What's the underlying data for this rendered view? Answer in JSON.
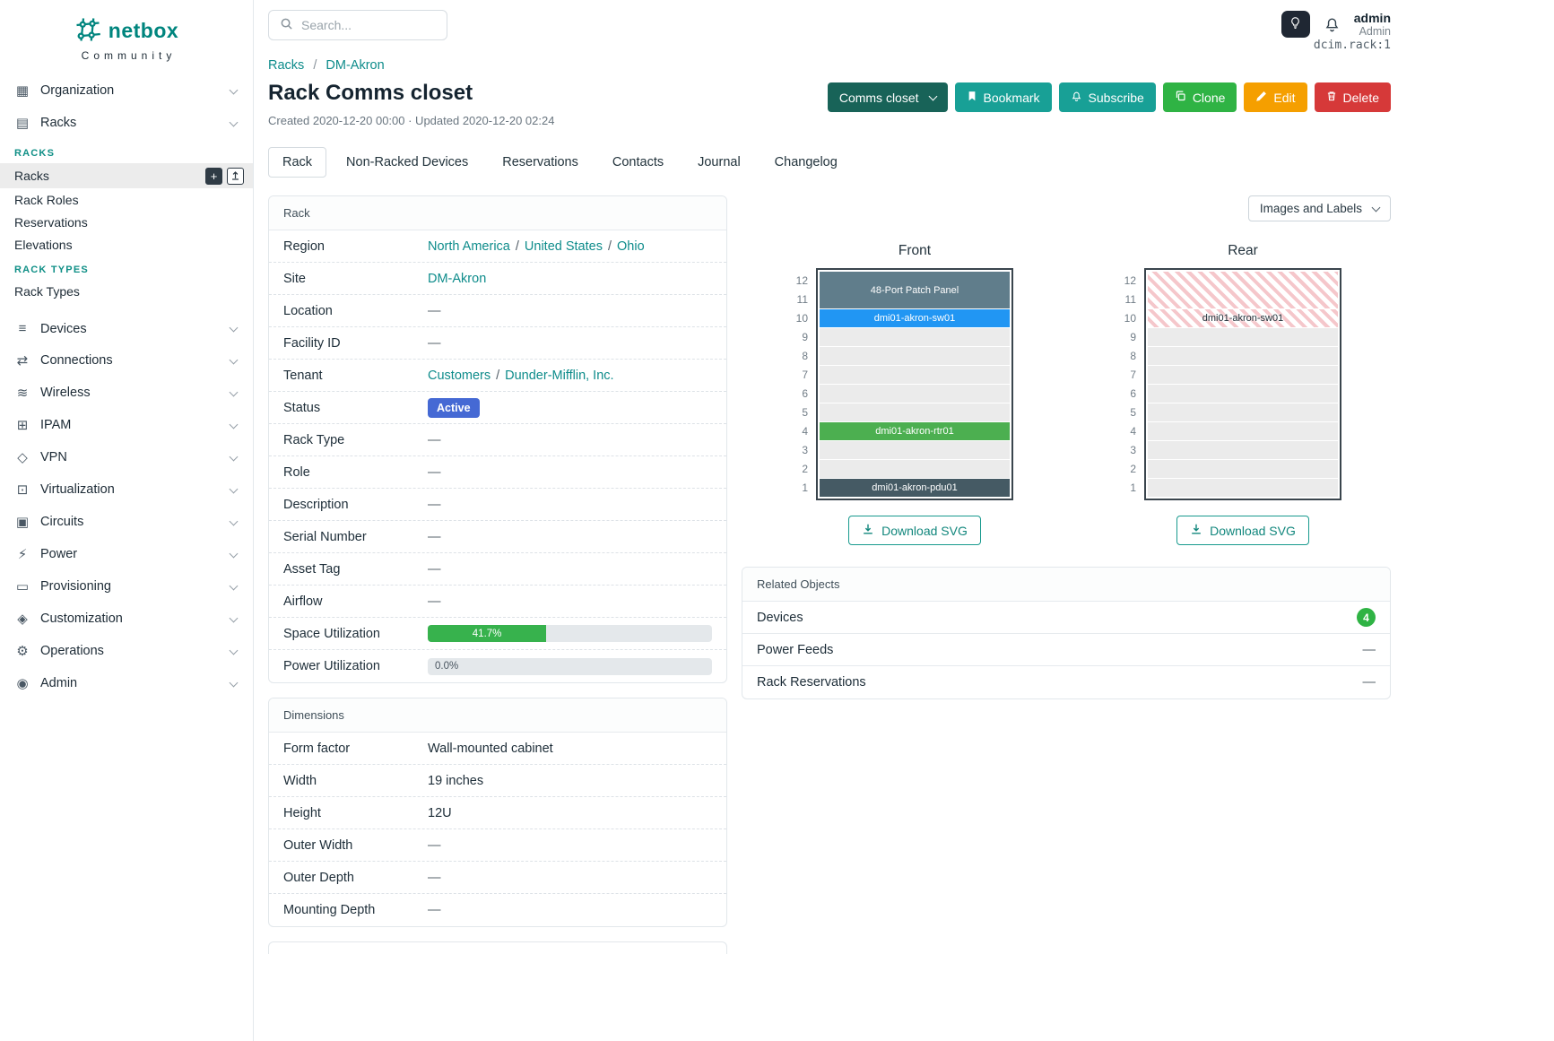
{
  "colors": {
    "brand_teal": "#00857e",
    "link_teal": "#0e8c8b",
    "button_teal": "#18a096",
    "button_dark_teal": "#186358",
    "button_green": "#2fb344",
    "button_orange": "#f59f00",
    "button_red": "#d63939",
    "status_active_badge": "#4569d4",
    "progress_green": "#37b24d",
    "device_patch_panel": "#607d8b",
    "device_switch_blue": "#2196f3",
    "device_router_green": "#4caf50",
    "device_pdu_dark": "#455a64",
    "count_badge_green": "#2fb344",
    "rear_hatch_pink": "#f5c7cb"
  },
  "icons": {
    "organization": "▦",
    "racks": "▤",
    "devices": "≡",
    "connections": "⇄",
    "wireless": "≋",
    "ipam": "⊞",
    "vpn": "◇",
    "virtualization": "⊡",
    "circuits": "▣",
    "power": "⚡",
    "provisioning": "▭",
    "customization": "◈",
    "operations": "⚙",
    "admin": "◉",
    "add": "+"
  },
  "topbar": {
    "search_placeholder": "Search...",
    "user_name": "admin",
    "user_role": "Admin"
  },
  "sidebar": {
    "brand": "netbox",
    "brand_sub": "Community",
    "items": [
      {
        "label": "Organization"
      },
      {
        "label": "Racks"
      },
      {
        "label": "Devices"
      },
      {
        "label": "Connections"
      },
      {
        "label": "Wireless"
      },
      {
        "label": "IPAM"
      },
      {
        "label": "VPN"
      },
      {
        "label": "Virtualization"
      },
      {
        "label": "Circuits"
      },
      {
        "label": "Power"
      },
      {
        "label": "Provisioning"
      },
      {
        "label": "Customization"
      },
      {
        "label": "Operations"
      },
      {
        "label": "Admin"
      }
    ],
    "racks_menu": {
      "section1_header": "RACKS",
      "section1_items": [
        "Racks",
        "Rack Roles",
        "Reservations",
        "Elevations"
      ],
      "section2_header": "RACK TYPES",
      "section2_items": [
        "Rack Types"
      ],
      "active_item": "Racks"
    }
  },
  "page": {
    "breadcrumb": [
      "Racks",
      "DM-Akron"
    ],
    "breadcrumb_sep": "/",
    "object_id": "dcim.rack:1",
    "title": "Rack Comms closet",
    "meta": "Created 2020-12-20 00:00 · Updated 2020-12-20 02:24",
    "actions": {
      "state_dropdown": "Comms closet",
      "bookmark": "Bookmark",
      "subscribe": "Subscribe",
      "clone": "Clone",
      "edit": "Edit",
      "delete": "Delete"
    },
    "tabs": [
      {
        "label": "Rack",
        "active": true
      },
      {
        "label": "Non-Racked Devices",
        "active": false
      },
      {
        "label": "Reservations",
        "active": false
      },
      {
        "label": "Contacts",
        "active": false
      },
      {
        "label": "Journal",
        "active": false
      },
      {
        "label": "Changelog",
        "active": false
      }
    ]
  },
  "rack_panel": {
    "title": "Rack",
    "sep": "/",
    "rows": {
      "region": {
        "label": "Region",
        "links": [
          "North America",
          "United States",
          "Ohio"
        ]
      },
      "site": {
        "label": "Site",
        "link": "DM-Akron"
      },
      "location": {
        "label": "Location",
        "value": "—"
      },
      "facility_id": {
        "label": "Facility ID",
        "value": "—"
      },
      "tenant": {
        "label": "Tenant",
        "links": [
          "Customers",
          "Dunder-Mifflin, Inc."
        ]
      },
      "status": {
        "label": "Status",
        "badge": "Active"
      },
      "rack_type": {
        "label": "Rack Type",
        "value": "—"
      },
      "role": {
        "label": "Role",
        "value": "—"
      },
      "description": {
        "label": "Description",
        "value": "—"
      },
      "serial_number": {
        "label": "Serial Number",
        "value": "—"
      },
      "asset_tag": {
        "label": "Asset Tag",
        "value": "—"
      },
      "airflow": {
        "label": "Airflow",
        "value": "—"
      },
      "space_utilization": {
        "label": "Space Utilization",
        "text": "41.7%",
        "percent": 41.7
      },
      "power_utilization": {
        "label": "Power Utilization",
        "text": "0.0%",
        "percent": 0
      }
    }
  },
  "dimensions_panel": {
    "title": "Dimensions",
    "rows": {
      "form_factor": {
        "label": "Form factor",
        "value": "Wall-mounted cabinet"
      },
      "width": {
        "label": "Width",
        "value": "19 inches"
      },
      "height": {
        "label": "Height",
        "value": "12U"
      },
      "outer_width": {
        "label": "Outer Width",
        "value": "—"
      },
      "outer_depth": {
        "label": "Outer Depth",
        "value": "—"
      },
      "mounting_depth": {
        "label": "Mounting Depth",
        "value": "—"
      }
    }
  },
  "elevation": {
    "view_select": "Images and Labels",
    "download_label": "Download SVG",
    "unit_numbers": [
      "12",
      "11",
      "10",
      "9",
      "8",
      "7",
      "6",
      "5",
      "4",
      "3",
      "2",
      "1"
    ],
    "front": {
      "heading": "Front",
      "devices": [
        {
          "name": "48-Port Patch Panel",
          "units": "11-12"
        },
        {
          "name": "dmi01-akron-sw01",
          "units": "10"
        },
        {
          "name": "dmi01-akron-rtr01",
          "units": "4"
        },
        {
          "name": "dmi01-akron-pdu01",
          "units": "1"
        }
      ]
    },
    "rear": {
      "heading": "Rear",
      "hatched_units": "10-12",
      "devices": [
        {
          "name": "dmi01-akron-sw01",
          "units": "10"
        }
      ]
    }
  },
  "related_objects": {
    "title": "Related Objects",
    "rows": [
      {
        "label": "Devices",
        "count": "4"
      },
      {
        "label": "Power Feeds",
        "value": "—"
      },
      {
        "label": "Rack Reservations",
        "value": "—"
      }
    ]
  }
}
